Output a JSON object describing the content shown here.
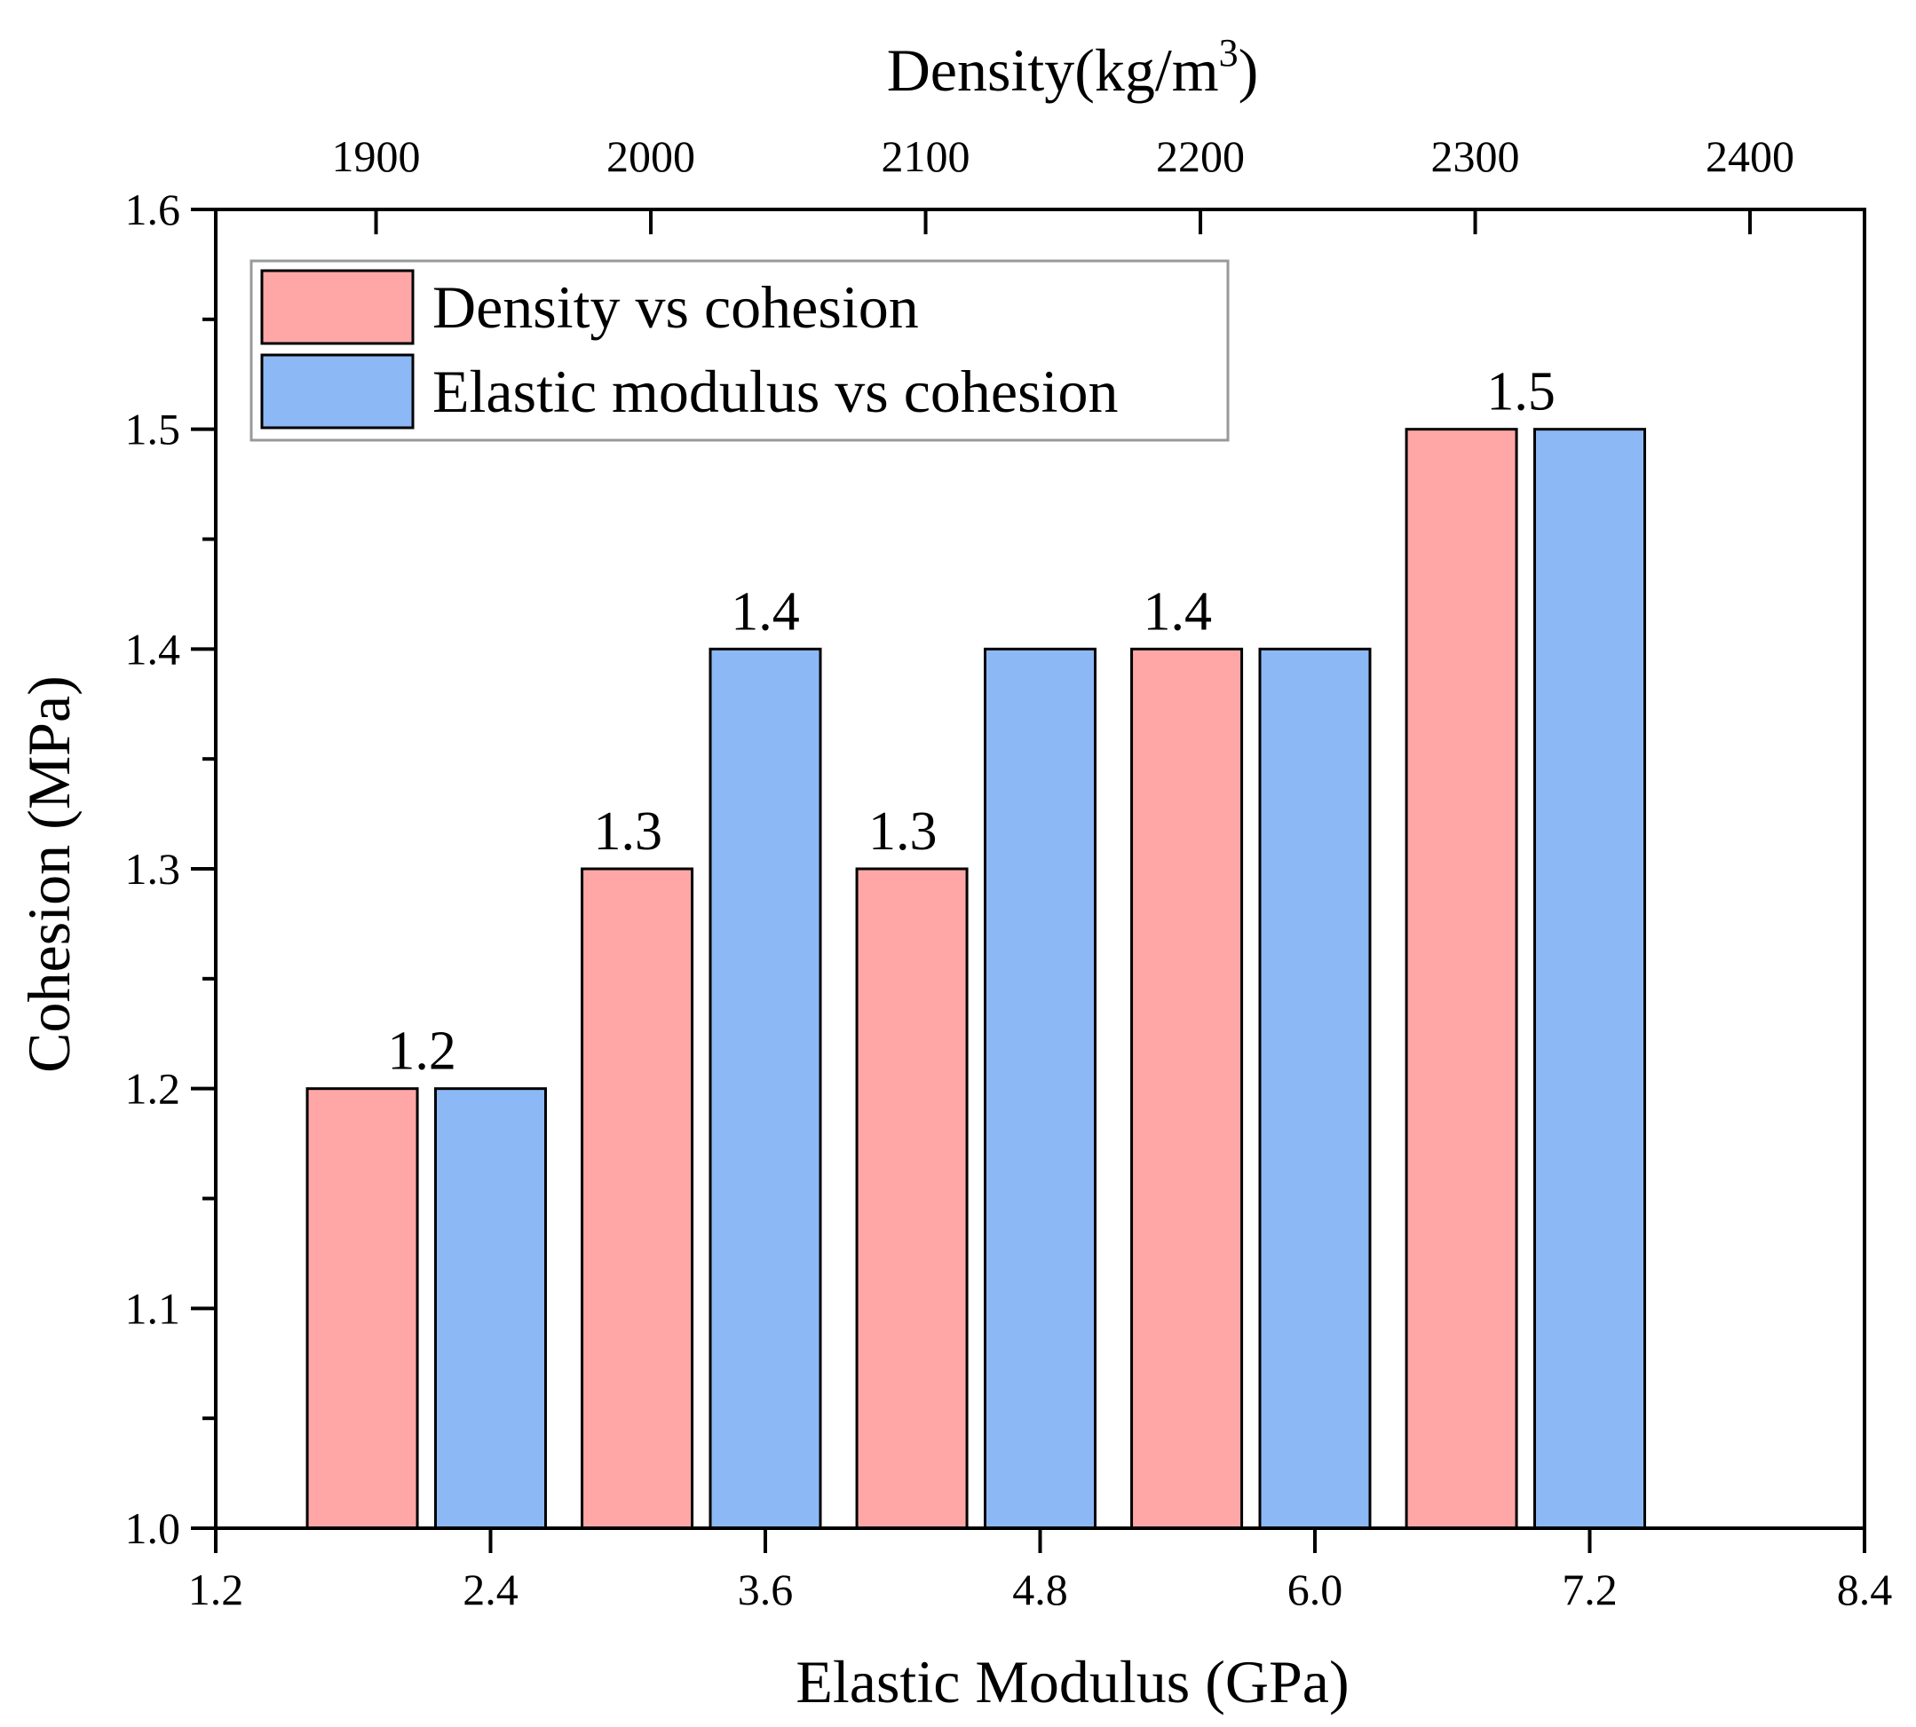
{
  "chart_data": {
    "type": "bar",
    "y_axis": {
      "title": "Cohesion (MPa)",
      "ylim": [
        1.0,
        1.6
      ],
      "ticks": [
        "1.0",
        "1.1",
        "1.2",
        "1.3",
        "1.4",
        "1.5",
        "1.6"
      ],
      "minor_step": 0.05
    },
    "x_bottom": {
      "title": "Elastic Modulus (GPa)",
      "xlim": [
        1.2,
        8.4
      ],
      "ticks": [
        "1.2",
        "2.4",
        "3.6",
        "4.8",
        "6.0",
        "7.2",
        "8.4"
      ]
    },
    "x_top": {
      "title_main": "Density(kg/m",
      "title_sup": "3",
      "title_end": ")",
      "ticks": [
        "1900",
        "2000",
        "2100",
        "2200",
        "2300",
        "2400"
      ]
    },
    "legend": {
      "position": "top-left",
      "items": [
        {
          "label": "Density vs cohesion",
          "color": "#FFA7A7"
        },
        {
          "label": "Elastic modulus vs cohesion",
          "color": "#8CB9F5"
        }
      ]
    },
    "series": [
      {
        "name": "Density vs cohesion",
        "color": "#FFA7A7",
        "x_density": [
          1895,
          1995,
          2095,
          2195,
          2295
        ],
        "values": [
          1.2,
          1.3,
          1.3,
          1.4,
          1.5
        ]
      },
      {
        "name": "Elastic modulus vs cohesion",
        "color": "#8CB9F5",
        "x_modulus": [
          2.4,
          3.6,
          4.8,
          6.0,
          7.2
        ],
        "values": [
          1.2,
          1.4,
          1.4,
          1.4,
          1.5
        ]
      }
    ],
    "data_labels": [
      {
        "text": "1.2",
        "x_modulus": 2.1,
        "y": 1.2
      },
      {
        "text": "1.3",
        "x_modulus": 3.0,
        "y": 1.3
      },
      {
        "text": "1.4",
        "x_modulus": 3.6,
        "y": 1.4
      },
      {
        "text": "1.3",
        "x_modulus": 4.2,
        "y": 1.3
      },
      {
        "text": "1.4",
        "x_modulus": 5.4,
        "y": 1.4
      },
      {
        "text": "1.5",
        "x_modulus": 6.9,
        "y": 1.5
      }
    ]
  }
}
